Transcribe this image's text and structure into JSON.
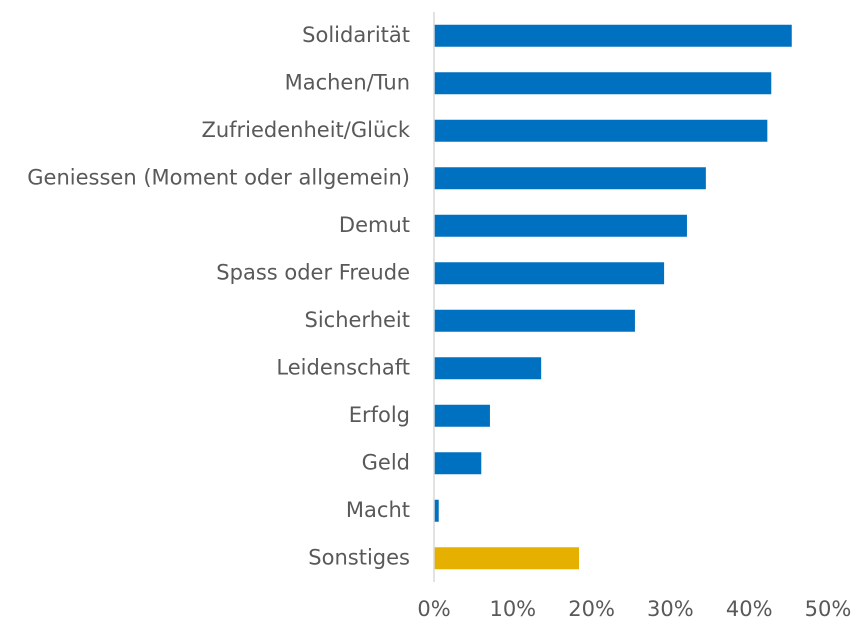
{
  "chart_data": {
    "type": "barh",
    "categories": [
      "Solidarität",
      "Machen/Tun",
      "Zufriedenheit/Glück",
      "Geniessen (Moment oder allgemein)",
      "Demut",
      "Spass oder Freude",
      "Sicherheit",
      "Leidenschaft",
      "Erfolg",
      "Geld",
      "Macht",
      "Sonstiges"
    ],
    "values": [
      45.4,
      42.8,
      42.3,
      34.5,
      32.1,
      29.2,
      25.5,
      13.6,
      7.1,
      6,
      0.6,
      18.4
    ],
    "colors": [
      "#0070c0",
      "#0070c0",
      "#0070c0",
      "#0070c0",
      "#0070c0",
      "#0070c0",
      "#0070c0",
      "#0070c0",
      "#0070c0",
      "#0070c0",
      "#0070c0",
      "#e6b000"
    ],
    "xlim": [
      0,
      50
    ],
    "xticks": [
      {
        "value": 0,
        "label": "0%"
      },
      {
        "value": 10,
        "label": "10%"
      },
      {
        "value": 20,
        "label": "20%"
      },
      {
        "value": 30,
        "label": "30%"
      },
      {
        "value": 40,
        "label": "40%"
      },
      {
        "value": 50,
        "label": "50%"
      }
    ],
    "grid": false
  }
}
